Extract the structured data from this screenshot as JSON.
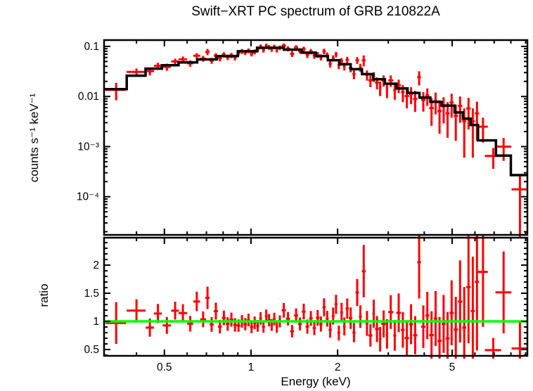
{
  "title": "Swift−XRT PC spectrum of GRB 210822A",
  "colors": {
    "background": "#ffffff",
    "frame": "#000000",
    "data": "#ff0000",
    "model": "#000000",
    "unity_line": "#00ff00",
    "text": "#000000"
  },
  "chart_data": {
    "type": "scatter",
    "title": "Swift−XRT PC spectrum of GRB 210822A",
    "xlabel": "Energy (keV)",
    "x_scale": "log",
    "x_range": [
      0.3086,
      9.13
    ],
    "x_major_ticks": [
      0.5,
      1,
      2,
      5
    ],
    "x_major_labels": [
      "0.5",
      "1",
      "2",
      "5"
    ],
    "x_minor_ticks": [
      0.4,
      0.6,
      0.7,
      0.8,
      0.9,
      3,
      4,
      6,
      7,
      8,
      9
    ],
    "legend": "none",
    "grid": "off",
    "panels": [
      {
        "name": "spectrum",
        "ylabel": "counts s⁻¹ keV⁻¹",
        "y_scale": "log",
        "y_range": [
          1.73e-05,
          0.1336
        ],
        "y_major_ticks": [
          0.1,
          0.01,
          0.001,
          0.0001
        ],
        "y_major_labels": [
          "0.1",
          "0.01",
          "10⁻³",
          "10⁻⁴"
        ],
        "series": [
          {
            "name": "observed-data",
            "marker": "cross-with-errors",
            "color": "#ff0000",
            "points_format": [
              "energy_keV",
              "energy_halfwidth_keV",
              "counts_s_keV",
              "counts_error"
            ],
            "points": [
              [
                0.34,
                0.028,
                0.0136,
                0.0052
              ],
              [
                0.4,
                0.03,
                0.031,
                0.0052
              ],
              [
                0.445,
                0.015,
                0.032,
                0.0058
              ],
              [
                0.475,
                0.015,
                0.041,
                0.0061
              ],
              [
                0.51,
                0.017,
                0.039,
                0.0063
              ],
              [
                0.545,
                0.017,
                0.05,
                0.0067
              ],
              [
                0.58,
                0.02,
                0.055,
                0.0077
              ],
              [
                0.615,
                0.015,
                0.046,
                0.0067
              ],
              [
                0.648,
                0.018,
                0.065,
                0.0083
              ],
              [
                0.682,
                0.016,
                0.057,
                0.0077
              ],
              [
                0.706,
                0.012,
                0.078,
                0.011
              ],
              [
                0.73,
                0.012,
                0.052,
                0.0072
              ],
              [
                0.755,
                0.013,
                0.065,
                0.0083
              ],
              [
                0.78,
                0.012,
                0.058,
                0.0077
              ],
              [
                0.805,
                0.013,
                0.068,
                0.0083
              ],
              [
                0.83,
                0.012,
                0.061,
                0.0077
              ],
              [
                0.855,
                0.013,
                0.066,
                0.008
              ],
              [
                0.88,
                0.012,
                0.06,
                0.0077
              ],
              [
                0.905,
                0.013,
                0.074,
                0.0088
              ],
              [
                0.93,
                0.012,
                0.08,
                0.009
              ],
              [
                0.955,
                0.013,
                0.076,
                0.0088
              ],
              [
                0.98,
                0.012,
                0.082,
                0.009
              ],
              [
                1.005,
                0.013,
                0.072,
                0.0088
              ],
              [
                1.03,
                0.012,
                0.078,
                0.009
              ],
              [
                1.055,
                0.013,
                0.0865,
                0.0099
              ],
              [
                1.08,
                0.012,
                0.099,
                0.0104
              ],
              [
                1.105,
                0.013,
                0.085,
                0.0099
              ],
              [
                1.13,
                0.012,
                0.103,
                0.0108
              ],
              [
                1.155,
                0.013,
                0.096,
                0.0103
              ],
              [
                1.18,
                0.012,
                0.088,
                0.0099
              ],
              [
                1.205,
                0.013,
                0.098,
                0.0103
              ],
              [
                1.23,
                0.012,
                0.085,
                0.0099
              ],
              [
                1.26,
                0.018,
                0.094,
                0.01
              ],
              [
                1.3,
                0.022,
                0.103,
                0.0112
              ],
              [
                1.345,
                0.023,
                0.09,
                0.0103
              ],
              [
                1.39,
                0.022,
                0.071,
                0.0095
              ],
              [
                1.435,
                0.023,
                0.095,
                0.0108
              ],
              [
                1.48,
                0.022,
                0.082,
                0.0099
              ],
              [
                1.525,
                0.023,
                0.088,
                0.0105
              ],
              [
                1.57,
                0.022,
                0.068,
                0.0094
              ],
              [
                1.615,
                0.023,
                0.079,
                0.0098
              ],
              [
                1.66,
                0.022,
                0.066,
                0.0094
              ],
              [
                1.705,
                0.023,
                0.068,
                0.009
              ],
              [
                1.75,
                0.022,
                0.061,
                0.0086
              ],
              [
                1.795,
                0.023,
                0.08,
                0.0102
              ],
              [
                1.84,
                0.022,
                0.067,
                0.009
              ],
              [
                1.885,
                0.023,
                0.045,
                0.0074
              ],
              [
                1.93,
                0.022,
                0.058,
                0.008
              ],
              [
                1.975,
                0.023,
                0.069,
                0.009
              ],
              [
                2.02,
                0.022,
                0.042,
                0.007
              ],
              [
                2.065,
                0.023,
                0.051,
                0.0075
              ],
              [
                2.11,
                0.022,
                0.04,
                0.007
              ],
              [
                2.16,
                0.028,
                0.054,
                0.0079
              ],
              [
                2.22,
                0.032,
                0.037,
                0.0067
              ],
              [
                2.28,
                0.028,
                0.028,
                0.006
              ],
              [
                2.34,
                0.032,
                0.053,
                0.0084
              ],
              [
                2.4,
                0.028,
                0.038,
                0.007
              ],
              [
                2.465,
                0.037,
                0.053,
                0.013
              ],
              [
                2.53,
                0.028,
                0.027,
                0.0062
              ],
              [
                2.6,
                0.042,
                0.021,
                0.0056
              ],
              [
                2.67,
                0.028,
                0.025,
                0.0055
              ],
              [
                2.74,
                0.042,
                0.019,
                0.0051
              ],
              [
                2.81,
                0.028,
                0.015,
                0.0048
              ],
              [
                2.89,
                0.052,
                0.021,
                0.0053
              ],
              [
                2.97,
                0.028,
                0.014,
                0.0047
              ],
              [
                3.06,
                0.062,
                0.021,
                0.0054
              ],
              [
                3.16,
                0.038,
                0.0135,
                0.0049
              ],
              [
                3.26,
                0.062,
                0.0167,
                0.005
              ],
              [
                3.37,
                0.048,
                0.0123,
                0.0046
              ],
              [
                3.48,
                0.062,
                0.0102,
                0.0044
              ],
              [
                3.6,
                0.058,
                0.0112,
                0.0042
              ],
              [
                3.72,
                0.062,
                0.0089,
                0.004
              ],
              [
                3.84,
                0.058,
                0.0242,
                0.0076
              ],
              [
                3.97,
                0.068,
                0.0086,
                0.0036
              ],
              [
                4.1,
                0.062,
                0.0105,
                0.004
              ],
              [
                4.24,
                0.078,
                0.0059,
                0.0033
              ],
              [
                4.38,
                0.062,
                0.0082,
                0.0038
              ],
              [
                4.52,
                0.078,
                0.0051,
                0.0033
              ],
              [
                4.67,
                0.072,
                0.0063,
                0.0034
              ],
              [
                4.82,
                0.078,
                0.0046,
                0.0031
              ],
              [
                4.98,
                0.082,
                0.0076,
                0.0038
              ],
              [
                5.15,
                0.088,
                0.0041,
                0.0028
              ],
              [
                5.33,
                0.092,
                0.0065,
                0.0035
              ],
              [
                5.51,
                0.088,
                0.0032,
                0.0026
              ],
              [
                5.7,
                0.102,
                0.0058,
                0.0036
              ],
              [
                5.9,
                0.098,
                0.0032,
                0.0026
              ],
              [
                6.1,
                0.102,
                0.0046,
                0.0033
              ],
              [
                6.4,
                0.25,
                0.0025,
                0.0013
              ],
              [
                6.95,
                0.45,
                0.00065,
                0.00029
              ],
              [
                7.55,
                0.48,
                0.001,
                0.00048
              ],
              [
                8.6,
                0.55,
                0.00014,
                0.00013
              ]
            ]
          },
          {
            "name": "folded-model",
            "style": "step-line",
            "color": "#000000",
            "bin_edges_keV": [
              0.308,
              0.37,
              0.43,
              0.49,
              0.56,
              0.65,
              0.76,
              0.9,
              1.05,
              1.3,
              1.5,
              1.68,
              1.85,
              2.03,
              2.22,
              2.43,
              2.66,
              2.92,
              3.2,
              3.5,
              3.85,
              4.2,
              4.6,
              5.1,
              5.45,
              5.8,
              6.15,
              7.1,
              8.0,
              9.13
            ],
            "values_counts_s_keV": [
              0.014,
              0.026,
              0.036,
              0.042,
              0.048,
              0.055,
              0.064,
              0.08,
              0.094,
              0.086,
              0.075,
              0.064,
              0.053,
              0.044,
              0.035,
              0.028,
              0.022,
              0.018,
              0.0145,
              0.0118,
              0.0095,
              0.0078,
              0.0066,
              0.0048,
              0.0036,
              0.0027,
              0.00133,
              0.00066,
              0.00027
            ]
          }
        ]
      },
      {
        "name": "ratio",
        "ylabel": "ratio",
        "y_scale": "linear",
        "y_range": [
          0.3875,
          2.4875
        ],
        "y_major_ticks": [
          0.5,
          1,
          1.5,
          2
        ],
        "y_major_labels": [
          "0.5",
          "1",
          "1.5",
          "2"
        ],
        "y_minor_step": 0.1,
        "derivation": "ratio = observed-data / folded-model evaluated per energy bin",
        "unity_line": {
          "value": 1,
          "color": "#00ff00"
        }
      }
    ]
  }
}
